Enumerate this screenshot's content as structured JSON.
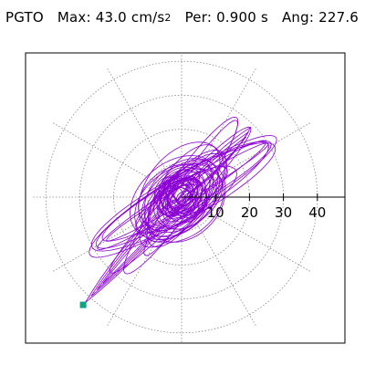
{
  "header": {
    "station": "PGTO",
    "max_label": "Max:",
    "max_value": "43.0",
    "max_unit": "cm/s",
    "max_unit_exp": "2",
    "per_label": "Per:",
    "per_value": "0.900",
    "per_unit": "s",
    "ang_label": "Ang:",
    "ang_value": "227.6"
  },
  "colors": {
    "trace": "#8a00d4",
    "marker": "#14a082",
    "grid": "#888888",
    "axis": "#000000"
  },
  "chart_data": {
    "type": "polar-orbit",
    "title": "",
    "unit": "cm/s^2",
    "r_ticks": [
      10,
      20,
      30,
      40
    ],
    "r_max": 46,
    "grid": true,
    "rings": [
      10,
      20,
      30,
      40
    ],
    "spokes_deg": [
      0,
      30,
      60,
      90,
      120,
      150,
      180,
      210,
      240,
      270,
      300,
      330
    ],
    "peak_point": {
      "angle_deg": 227.6,
      "radius": 43.0
    },
    "orbit_main_axis_deg": 43,
    "orbit_extent_positive": 29,
    "orbit_extent_negative": 43
  }
}
